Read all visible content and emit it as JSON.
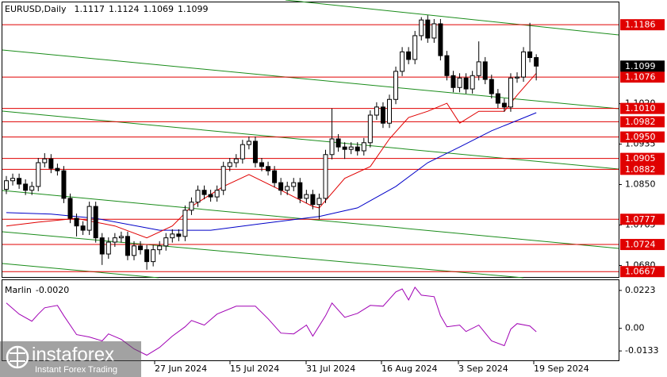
{
  "chart_data": [
    {
      "type": "candlestick",
      "title": "EURUSD,Daily",
      "candles": {
        "open": [
          1.084,
          1.0858,
          1.0863,
          1.0851,
          1.0838,
          1.0846,
          1.0896,
          1.0904,
          1.0884,
          1.0879,
          1.0821,
          1.0779,
          1.0763,
          1.0754,
          1.0804,
          1.0738,
          1.0704,
          1.0729,
          1.0738,
          1.0741,
          1.0701,
          1.0721,
          1.0713,
          1.0688,
          1.0713,
          1.0721,
          1.0738,
          1.0746,
          1.0741,
          1.0796,
          1.0813,
          1.0838,
          1.0829,
          1.0824,
          1.0838,
          1.0888,
          1.0896,
          1.0904,
          1.0934,
          1.0941,
          1.0896,
          1.0888,
          1.0879,
          1.0854,
          1.0838,
          1.0846,
          1.0854,
          1.0821,
          1.0829,
          1.0808,
          1.0821,
          1.0913,
          1.0946,
          1.0929,
          1.0924,
          1.0929,
          1.0921,
          1.0938,
          1.0996,
          1.1013,
          1.0979,
          1.1029,
          1.1088,
          1.1129,
          1.1113,
          1.1163,
          1.1196,
          1.1158,
          1.1188,
          1.1121,
          1.1079,
          1.1054,
          1.1074,
          1.1051,
          1.1079,
          1.1108,
          1.1071,
          1.1041,
          1.1021,
          1.1013,
          1.1074,
          1.1076,
          1.1129,
          1.1117
        ],
        "high": [
          1.0868,
          1.0873,
          1.0873,
          1.0861,
          1.0856,
          1.0906,
          1.0916,
          1.0914,
          1.0894,
          1.0889,
          1.0831,
          1.0789,
          1.0773,
          1.0814,
          1.0814,
          1.0748,
          1.0739,
          1.0748,
          1.0751,
          1.0751,
          1.0731,
          1.0731,
          1.0723,
          1.0723,
          1.0731,
          1.0748,
          1.0756,
          1.0756,
          1.0806,
          1.0823,
          1.0848,
          1.0848,
          1.0839,
          1.0848,
          1.0898,
          1.0906,
          1.0914,
          1.0944,
          1.0951,
          1.0951,
          1.0906,
          1.0898,
          1.0889,
          1.0864,
          1.0856,
          1.0864,
          1.0864,
          1.0839,
          1.0839,
          1.0831,
          1.0923,
          1.101,
          1.0956,
          1.0939,
          1.0939,
          1.0939,
          1.0948,
          1.1006,
          1.1023,
          1.1023,
          1.1039,
          1.1098,
          1.1139,
          1.1139,
          1.1173,
          1.1202,
          1.1206,
          1.1198,
          1.1198,
          1.1131,
          1.1089,
          1.1084,
          1.1084,
          1.1089,
          1.1151,
          1.1118,
          1.1081,
          1.1051,
          1.1031,
          1.1084,
          1.1086,
          1.1139,
          1.119,
          1.1124
        ],
        "low": [
          1.083,
          1.0848,
          1.0841,
          1.0828,
          1.0828,
          1.0836,
          1.0886,
          1.0874,
          1.0869,
          1.0811,
          1.0769,
          1.0741,
          1.0744,
          1.0744,
          1.0728,
          1.0681,
          1.0694,
          1.0719,
          1.0728,
          1.0691,
          1.0691,
          1.0703,
          1.0671,
          1.0678,
          1.0703,
          1.0711,
          1.0728,
          1.0731,
          1.0731,
          1.0786,
          1.0803,
          1.0819,
          1.0814,
          1.0814,
          1.0828,
          1.0878,
          1.0886,
          1.0894,
          1.0924,
          1.0886,
          1.0878,
          1.0869,
          1.0844,
          1.0828,
          1.0828,
          1.0836,
          1.0811,
          1.0811,
          1.0798,
          1.0777,
          1.0811,
          1.0903,
          1.0919,
          1.0904,
          1.0914,
          1.0911,
          1.0911,
          1.0928,
          1.0986,
          1.0969,
          1.0969,
          1.1019,
          1.1078,
          1.1103,
          1.1103,
          1.1153,
          1.1148,
          1.1148,
          1.1111,
          1.1069,
          1.1044,
          1.1044,
          1.1041,
          1.1041,
          1.1069,
          1.1061,
          1.1031,
          1.1011,
          1.1003,
          1.1003,
          1.1064,
          1.1066,
          1.1107,
          1.1069
        ],
        "close": [
          1.0858,
          1.0863,
          1.0851,
          1.0838,
          1.0846,
          1.0896,
          1.0904,
          1.0884,
          1.0879,
          1.0821,
          1.0779,
          1.0763,
          1.0754,
          1.0804,
          1.0738,
          1.0704,
          1.0729,
          1.0738,
          1.0741,
          1.0701,
          1.0721,
          1.0713,
          1.0688,
          1.0713,
          1.0721,
          1.0738,
          1.0746,
          1.0741,
          1.0796,
          1.0813,
          1.0838,
          1.0829,
          1.0824,
          1.0838,
          1.0888,
          1.0896,
          1.0904,
          1.0934,
          1.0941,
          1.0896,
          1.0888,
          1.0879,
          1.0854,
          1.0838,
          1.0846,
          1.0854,
          1.0821,
          1.0829,
          1.0808,
          1.0821,
          1.0913,
          1.0946,
          1.0929,
          1.0924,
          1.0929,
          1.0921,
          1.0938,
          1.0996,
          1.1013,
          1.0979,
          1.1029,
          1.1088,
          1.1129,
          1.1113,
          1.1163,
          1.1196,
          1.1158,
          1.1188,
          1.1121,
          1.1079,
          1.1054,
          1.1074,
          1.1051,
          1.1079,
          1.1108,
          1.1071,
          1.1041,
          1.1021,
          1.1013,
          1.1074,
          1.1076,
          1.1129,
          1.1117,
          1.1099
        ]
      },
      "ylim": [
        1.0654,
        1.1238
      ],
      "yticks": [
        {
          "value": 1.102,
          "label": "1.1020"
        },
        1.0935,
        {
          "value": 1.085,
          "label": "1.0850"
        },
        1.0765,
        {
          "value": 1.068,
          "label": "1.0680"
        }
      ],
      "levels": {
        "color": "#e00000",
        "values": [
          1.1186,
          1.1076,
          1.101,
          1.0982,
          1.095,
          1.0905,
          1.0882,
          1.0777,
          1.0724,
          1.0667
        ],
        "value_labels": [
          "1.1186",
          "1.1076",
          "1.1010",
          "1.0982",
          "1.0950",
          "1.0905",
          "1.0882",
          "1.0777",
          "1.0724",
          "1.0667"
        ]
      },
      "series": [
        {
          "color": "#0000c8",
          "x": [
            0,
            7,
            14,
            24,
            32,
            40,
            49,
            55,
            61,
            66,
            71,
            76,
            83
          ],
          "values": [
            1.0791,
            1.0788,
            1.0779,
            1.0754,
            1.0754,
            1.0768,
            1.0783,
            1.0801,
            1.0846,
            1.0896,
            1.0929,
            1.0963,
            1.1001
          ]
        },
        {
          "color": "#e00000",
          "x": [
            0,
            5,
            11,
            17,
            22,
            26,
            29,
            34,
            38,
            43,
            48,
            49,
            53,
            57,
            60,
            63,
            66,
            69,
            71,
            74,
            78,
            80,
            83
          ],
          "values": [
            1.0763,
            1.0771,
            1.0779,
            1.0763,
            1.0738,
            1.0763,
            1.0804,
            1.0846,
            1.0871,
            1.0838,
            1.0804,
            1.0801,
            1.0863,
            1.0888,
            1.0946,
            1.0991,
            1.1004,
            1.1021,
            1.0979,
            1.1004,
            1.1004,
            1.1038,
            1.1084
          ]
        }
      ],
      "date_labels": [
        "27 Jun 2024",
        "15 Jul 2024",
        "31 Jul 2024",
        "16 Aug 2024",
        "3 Sep 2024",
        "19 Sep 2024"
      ],
      "watermark": {
        "brand": "instaforex",
        "tagline": "Instant Forex Trading"
      }
    },
    {
      "type": "line",
      "title": "Marlin",
      "value_label": "-0.0020",
      "color": "#a000b4",
      "x": [
        0,
        2,
        4,
        5,
        6,
        8,
        9,
        11,
        13,
        15,
        16,
        18,
        20,
        22,
        24,
        26,
        28,
        29,
        31,
        33,
        36,
        39,
        41,
        43,
        45,
        47,
        48,
        50,
        51,
        53,
        55,
        57,
        59,
        61,
        62,
        63,
        64,
        65,
        67,
        68,
        69,
        71,
        72,
        74,
        76,
        78,
        79,
        80,
        82,
        83
      ],
      "values": [
        0.0149,
        0.0084,
        0.0042,
        0.0084,
        0.0121,
        0.0135,
        0.0074,
        -0.0037,
        -0.0051,
        -0.0074,
        -0.0033,
        -0.0065,
        -0.0121,
        -0.0158,
        -0.0112,
        -0.0046,
        0.0009,
        0.0046,
        0.0019,
        0.0084,
        0.013,
        0.013,
        0.0056,
        -0.0028,
        -0.0033,
        0.0019,
        -0.0046,
        0.0074,
        0.0149,
        0.0065,
        0.0088,
        0.0135,
        0.013,
        0.0214,
        0.0232,
        0.0167,
        0.0242,
        0.0195,
        0.0186,
        0.0074,
        0.0009,
        0.0019,
        -0.0019,
        0.0019,
        -0.0074,
        -0.0102,
        -0.0005,
        0.0028,
        0.0014,
        -0.002
      ],
      "ylim": [
        -0.0193,
        0.0288
      ],
      "yticks": [
        0.0223,
        {
          "value": 0,
          "label": "0.00"
        },
        -0.0133
      ]
    }
  ]
}
